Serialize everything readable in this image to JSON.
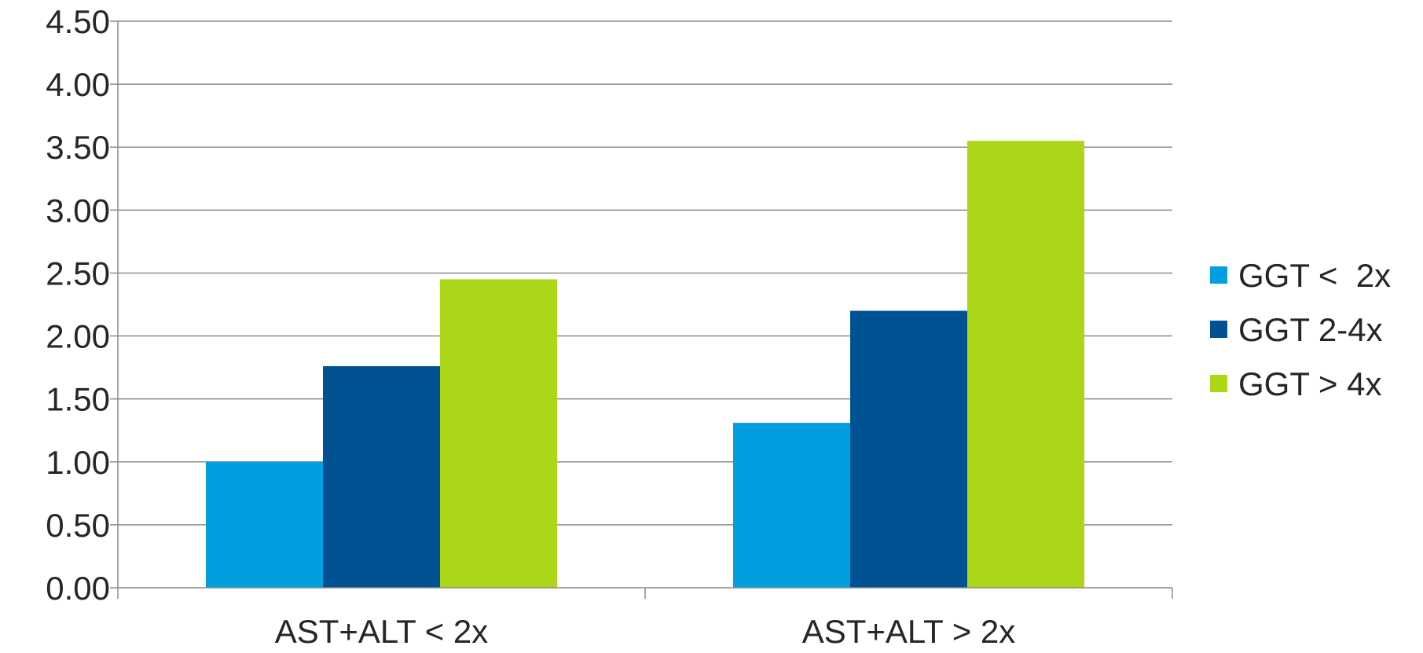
{
  "chart_data": {
    "type": "bar",
    "categories": [
      "AST+ALT < 2x",
      "AST+ALT > 2x"
    ],
    "series": [
      {
        "name": "GGT <  2x",
        "values": [
          1.0,
          1.31
        ],
        "color": "#019FDF"
      },
      {
        "name": "GGT 2-4x",
        "values": [
          1.76,
          2.2
        ],
        "color": "#005293"
      },
      {
        "name": "GGT > 4x",
        "values": [
          2.45,
          3.55
        ],
        "color": "#ACD718"
      }
    ],
    "title": "",
    "xlabel": "",
    "ylabel": "",
    "ylim": [
      0,
      4.5
    ],
    "ytick_step": 0.5,
    "ytick_labels": [
      "0.00",
      "0.50",
      "1.00",
      "1.50",
      "2.00",
      "2.50",
      "3.00",
      "3.50",
      "4.00",
      "4.50"
    ],
    "grid": true,
    "legend_position": "right",
    "gridline_color": "#8C8C8C",
    "text_color": "#262626"
  }
}
